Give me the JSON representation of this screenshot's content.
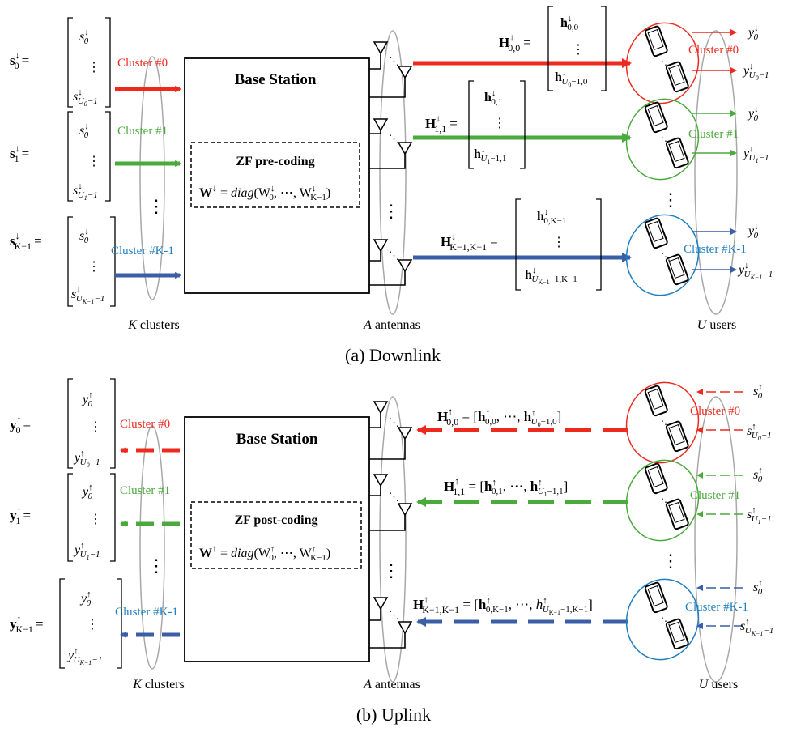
{
  "colors": {
    "red": "#ee2a1f",
    "green": "#4aaa3c",
    "blue": "#3a5fa6",
    "label_blue": "#1e7fc0",
    "ellipse_gray": "#a8a8a8",
    "black": "#000000"
  },
  "icons": [
    "antenna-icon",
    "phone-icon"
  ],
  "captions": {
    "downlink": "(a) Downlink",
    "uplink": "(b) Uplink"
  },
  "downlink": {
    "base_station": "Base Station",
    "coding_title": "ZF pre-coding",
    "coding_eq": {
      "lhs": "W",
      "sup": "↓",
      "eq": " = ",
      "fn": "diag",
      "open": "(W",
      "s0": "0",
      "mid": ", ⋯, W",
      "sK": "K−1",
      "close": ")"
    },
    "bottom_labels": {
      "clusters": "clusters",
      "clusters_var": "K",
      "antennas": "antennas",
      "antennas_var": "A",
      "users": "users",
      "users_var": "U"
    },
    "clusters": [
      {
        "label": "Cluster #0",
        "vec": "s",
        "vsub": "0",
        "top": "s",
        "top_sub": "0",
        "bot": "s",
        "bot_sub": "U",
        "bot_subsub": "0",
        "bot_tail": "−1",
        "H": "H",
        "Hsub": "0,0",
        "h_top_sub": "0,0",
        "h_bot_sub": "U",
        "h_bot_subsub": "0",
        "h_bot_tail": "−1,0",
        "y_top": "y",
        "y_top_sub": "0",
        "y_bot": "y",
        "y_bot_sub": "U",
        "y_bot_subsub": "0",
        "y_bot_tail": "−1"
      },
      {
        "label": "Cluster #1",
        "vec": "s",
        "vsub": "1",
        "top": "s",
        "top_sub": "0",
        "bot": "s",
        "bot_sub": "U",
        "bot_subsub": "1",
        "bot_tail": "−1",
        "H": "H",
        "Hsub": "1,1",
        "h_top_sub": "0,1",
        "h_bot_sub": "U",
        "h_bot_subsub": "1",
        "h_bot_tail": "−1,1",
        "y_top": "y",
        "y_top_sub": "0",
        "y_bot": "y",
        "y_bot_sub": "U",
        "y_bot_subsub": "1",
        "y_bot_tail": "−1"
      },
      {
        "label": "Cluster #K-1",
        "vec": "s",
        "vsub": "K−1",
        "top": "s",
        "top_sub": "0",
        "bot": "s",
        "bot_sub": "U",
        "bot_subsub": "K−1",
        "bot_tail": "−1",
        "H": "H",
        "Hsub": "K−1,K−1",
        "h_top_sub": "0,K−1",
        "h_bot_sub": "U",
        "h_bot_subsub": "K−1",
        "h_bot_tail": "−1,K−1",
        "y_top": "y",
        "y_top_sub": "0",
        "y_bot": "y",
        "y_bot_sub": "U",
        "y_bot_subsub": "K−1",
        "y_bot_tail": "−1"
      }
    ]
  },
  "uplink": {
    "base_station": "Base Station",
    "coding_title": "ZF post-coding",
    "coding_eq": {
      "lhs": "W",
      "sup": "↑",
      "eq": " = ",
      "fn": "diag",
      "open": "(W",
      "s0": "0",
      "mid": ", ⋯, W",
      "sK": "K−1",
      "close": ")"
    },
    "bottom_labels": {
      "clusters": "clusters",
      "clusters_var": "K",
      "antennas": "antennas",
      "antennas_var": "A",
      "users": "users",
      "users_var": "U"
    },
    "clusters": [
      {
        "label": "Cluster #0",
        "vec": "y",
        "vsub": "0",
        "top": "y",
        "top_sub": "0",
        "bot": "y",
        "bot_sub": "U",
        "bot_subsub": "0",
        "bot_tail": "−1",
        "H": "H",
        "Hsub": "0,0",
        "eq_open": " = [",
        "h1": "h",
        "h1_sub": "0,0",
        "dots": ", ⋯, ",
        "h2": "h",
        "h2_sub": "U",
        "h2_subsub": "0",
        "h2_tail": "−1,0",
        "eq_close": "]",
        "s_top": "s",
        "s_top_sub": "0",
        "s_bot": "s",
        "s_bot_sub": "U",
        "s_bot_subsub": "0",
        "s_bot_tail": "−1"
      },
      {
        "label": "Cluster #1",
        "vec": "y",
        "vsub": "1",
        "top": "y",
        "top_sub": "0",
        "bot": "y",
        "bot_sub": "U",
        "bot_subsub": "1",
        "bot_tail": "−1",
        "H": "H",
        "Hsub": "1,1",
        "eq_open": " = [",
        "h1": "h",
        "h1_sub": "0,1",
        "dots": ", ⋯, ",
        "h2": "h",
        "h2_sub": "U",
        "h2_subsub": "1",
        "h2_tail": "−1,1",
        "eq_close": "]",
        "s_top": "s",
        "s_top_sub": "0",
        "s_bot": "s",
        "s_bot_sub": "U",
        "s_bot_subsub": "1",
        "s_bot_tail": "−1"
      },
      {
        "label": "Cluster #K-1",
        "vec": "y",
        "vsub": "K−1",
        "top": "y",
        "top_sub": "0",
        "bot": "y",
        "bot_sub": "U",
        "bot_subsub": "K−1",
        "bot_tail": "−1",
        "H": "H",
        "Hsub": "K−1,K−1",
        "eq_open": " = [",
        "h1": "h",
        "h1_sub": "0,K−1",
        "dots": ", ⋯, ",
        "h2": "h",
        "h2_sub": "U",
        "h2_subsub": "K−1",
        "h2_tail": "−1,K−1",
        "eq_close": "]",
        "s_top": "s",
        "s_top_sub": "0",
        "s_bot": "s",
        "s_bot_sub": "U",
        "s_bot_subsub": "K−1",
        "s_bot_tail": "−1"
      }
    ]
  }
}
